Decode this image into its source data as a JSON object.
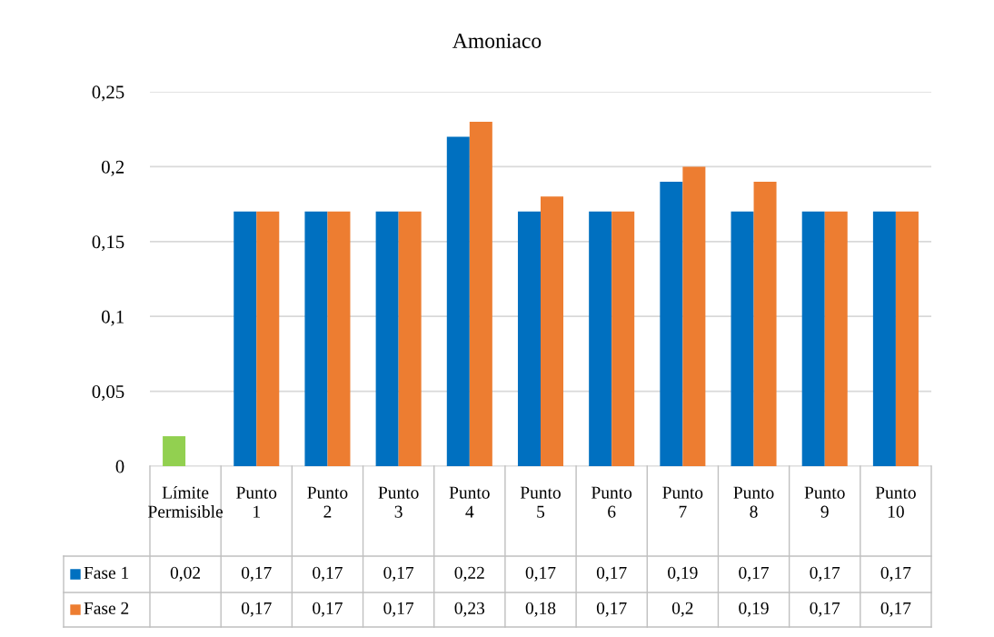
{
  "chart_data": {
    "type": "bar",
    "title": "Amoniaco",
    "categories": [
      "Límite Permisible",
      "Punto 1",
      "Punto 2",
      "Punto 3",
      "Punto 4",
      "Punto 5",
      "Punto 6",
      "Punto 7",
      "Punto 8",
      "Punto 9",
      "Punto 10"
    ],
    "series": [
      {
        "name": "Fase 1",
        "color": "#0070c0",
        "colors": [
          "#92d050",
          "#0070c0",
          "#0070c0",
          "#0070c0",
          "#0070c0",
          "#0070c0",
          "#0070c0",
          "#0070c0",
          "#0070c0",
          "#0070c0",
          "#0070c0"
        ],
        "values": [
          0.02,
          0.17,
          0.17,
          0.17,
          0.22,
          0.17,
          0.17,
          0.19,
          0.17,
          0.17,
          0.17
        ],
        "value_labels": [
          "0,02",
          "0,17",
          "0,17",
          "0,17",
          "0,22",
          "0,17",
          "0,17",
          "0,19",
          "0,17",
          "0,17",
          "0,17"
        ]
      },
      {
        "name": "Fase 2",
        "color": "#ed7d31",
        "values": [
          null,
          0.17,
          0.17,
          0.17,
          0.23,
          0.18,
          0.17,
          0.2,
          0.19,
          0.17,
          0.17
        ],
        "value_labels": [
          null,
          "0,17",
          "0,17",
          "0,17",
          "0,23",
          "0,18",
          "0,17",
          "0,2",
          "0,19",
          "0,17",
          "0,17"
        ]
      }
    ],
    "ylim": [
      0,
      0.25
    ],
    "yticks": [
      {
        "value": 0,
        "label": "0"
      },
      {
        "value": 0.05,
        "label": "0,05"
      },
      {
        "value": 0.1,
        "label": "0,1"
      },
      {
        "value": 0.15,
        "label": "0,15"
      },
      {
        "value": 0.2,
        "label": "0,2"
      },
      {
        "value": 0.25,
        "label": "0,25"
      }
    ],
    "grid": "y",
    "legend": "bottom"
  }
}
